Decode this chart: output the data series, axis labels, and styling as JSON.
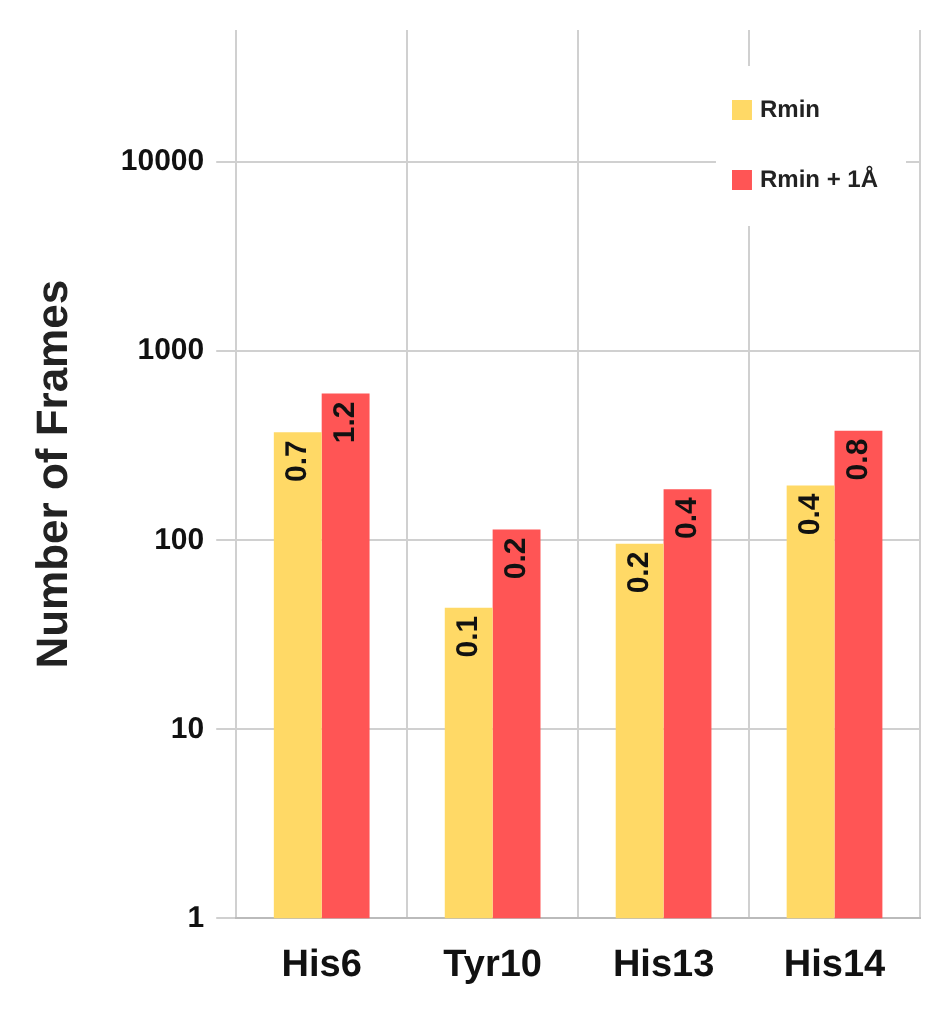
{
  "chart_data": {
    "type": "bar",
    "ylabel": "Number of Frames",
    "categories": [
      "His6",
      "Tyr10",
      "His13",
      "His14"
    ],
    "series": [
      {
        "name": "Rmin",
        "color": "#ffd966",
        "values": [
          373,
          44,
          96,
          195
        ]
      },
      {
        "name": "Rmin + 1Å",
        "color": "#ff5555",
        "values": [
          597,
          114,
          186,
          380
        ]
      }
    ],
    "annotations": [
      {
        "text": "0.7",
        "x": "His6",
        "y": 373
      },
      {
        "text": "0.1",
        "x": "Tyr10",
        "y": 44
      },
      {
        "text": "0.2",
        "x": "His13",
        "y": 96
      },
      {
        "text": "0.4",
        "x": "His14",
        "y": 195
      },
      {
        "text": "1.2",
        "x": "His6",
        "y": 597
      },
      {
        "text": "0.2",
        "x": "Tyr10",
        "y": 114
      },
      {
        "text": "0.4",
        "x": "His13",
        "y": 186
      },
      {
        "text": "0.8",
        "x": "His14",
        "y": 380
      }
    ],
    "log": true,
    "ylim": [
      1,
      50000
    ],
    "yticks": [
      1,
      10,
      100,
      1000,
      10000
    ],
    "grid": true,
    "legend": "top right"
  }
}
